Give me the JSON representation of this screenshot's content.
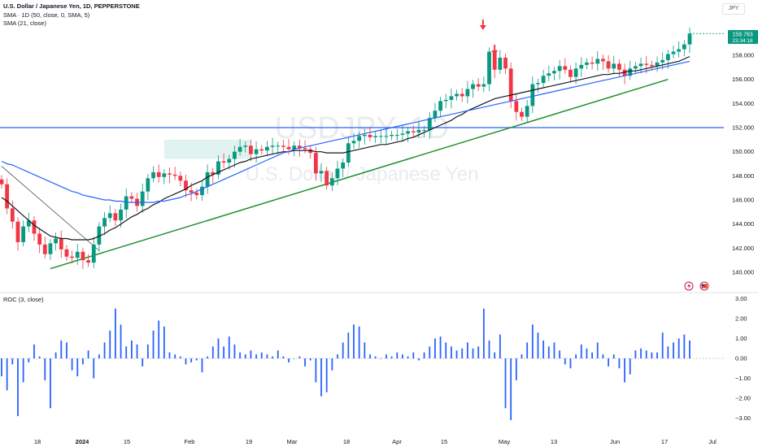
{
  "header": {
    "symbol_line": "U.S. Dollar / Japanese Yen, 1D, PEPPERSTONE",
    "sma50_line": "SMA · 1D (50, close, 0, SMA, 5)",
    "sma21_line": "SMA (21, close)",
    "currency": "JPY"
  },
  "watermark": {
    "ticker": "USDJPY, 1D",
    "name": "U.S. Dollar / Japanese Yen"
  },
  "price_badge": {
    "price": "159.763",
    "countdown": "23:34:18",
    "color": "#089981"
  },
  "colors": {
    "up": "#089981",
    "down": "#f23645",
    "sma21": "#131722",
    "sma50": "#2962ff",
    "support": "#1e8f2e",
    "resistance": "#2962ff",
    "roc": "#2962ff"
  },
  "chart_data": [
    {
      "type": "candlestick",
      "ylim": [
        139,
        160
      ],
      "yticks": [
        140,
        142,
        144,
        146,
        148,
        150,
        152,
        154,
        156,
        158
      ],
      "x_tick_labels": [
        "18",
        "2024",
        "15",
        "Feb",
        "19",
        "Mar",
        "18",
        "Apr",
        "15",
        "May",
        "13",
        "Jun",
        "17",
        "Jul"
      ],
      "closes": [
        147.3,
        145.3,
        144.2,
        142.5,
        143.8,
        144.3,
        143.2,
        142.3,
        141.5,
        142.4,
        142.8,
        141.9,
        141.3,
        141.2,
        141.7,
        141.0,
        140.8,
        142.3,
        143.8,
        144.5,
        144.9,
        144.3,
        145.2,
        146.3,
        146.1,
        145.5,
        146.7,
        147.8,
        148.3,
        147.9,
        148.2,
        148.1,
        148.0,
        147.6,
        146.8,
        146.6,
        146.4,
        147.1,
        148.3,
        148.1,
        149.2,
        149.1,
        149.4,
        150.0,
        150.4,
        150.5,
        149.8,
        150.2,
        150.1,
        150.4,
        150.5,
        150.5,
        150.4,
        150.2,
        150.5,
        150.3,
        150.2,
        149.9,
        148.2,
        148.4,
        147.2,
        147.8,
        148.6,
        149.1,
        150.7,
        150.9,
        151.3,
        151.4,
        151.2,
        151.3,
        151.3,
        151.3,
        151.4,
        151.4,
        151.5,
        151.7,
        151.6,
        151.8,
        151.8,
        152.8,
        153.4,
        154.2,
        154.3,
        154.6,
        154.8,
        154.6,
        155.2,
        155.6,
        155.4,
        155.6,
        158.3,
        156.8,
        157.8,
        156.9,
        154.2,
        153.3,
        152.9,
        153.8,
        155.6,
        155.7,
        156.3,
        156.5,
        156.7,
        157.1,
        156.8,
        156.2,
        156.9,
        157.2,
        157.4,
        157.3,
        157.7,
        157.5,
        156.9,
        157.3,
        156.8,
        156.3,
        156.9,
        157.1,
        157.3,
        157.2,
        157.1,
        157.4,
        157.6,
        158.1,
        158.3,
        158.5,
        158.9,
        159.8
      ],
      "highs_extra": 0.35,
      "series": [
        {
          "name": "SMA (21, close)",
          "values": [
            146.2,
            145.9,
            145.5,
            145.1,
            144.7,
            144.3,
            143.9,
            143.6,
            143.3,
            143.0,
            142.9,
            142.8,
            142.8,
            142.7,
            142.7,
            142.7,
            142.7,
            142.8,
            143.0,
            143.2,
            143.5,
            143.7,
            144.0,
            144.3,
            144.6,
            144.8,
            145.1,
            145.3,
            145.6,
            145.8,
            146.1,
            146.3,
            146.5,
            146.7,
            146.9,
            147.2,
            147.4,
            147.6,
            147.9,
            148.1,
            148.3,
            148.5,
            148.7,
            148.9,
            149.1,
            149.2,
            149.4,
            149.5,
            149.6,
            149.7,
            149.8,
            149.9,
            150.0,
            150.0,
            150.1,
            150.1,
            150.1,
            150.1,
            150.0,
            150.0,
            149.9,
            149.9,
            149.9,
            149.9,
            150.0,
            150.1,
            150.2,
            150.3,
            150.4,
            150.5,
            150.6,
            150.6,
            150.7,
            150.8,
            150.9,
            151.1,
            151.2,
            151.4,
            151.6,
            151.8,
            152.0,
            152.2,
            152.4,
            152.6,
            152.9,
            153.1,
            153.4,
            153.6,
            153.8,
            154.0,
            154.2,
            154.4,
            154.5,
            154.6,
            154.7,
            154.8,
            154.9,
            155.0,
            155.1,
            155.2,
            155.3,
            155.4,
            155.5,
            155.6,
            155.7,
            155.8,
            155.9,
            156.0,
            156.1,
            156.2,
            156.3,
            156.4,
            156.4,
            156.5,
            156.5,
            156.6,
            156.7,
            156.7,
            156.8,
            156.9,
            157.0,
            157.1,
            157.2,
            157.3,
            157.4,
            157.5,
            157.7,
            157.9
          ]
        },
        {
          "name": "SMA · 1D (50, close, 0, SMA, 5)",
          "values": [
            149.2,
            149.0,
            148.9,
            148.7,
            148.5,
            148.3,
            148.1,
            147.9,
            147.7,
            147.5,
            147.3,
            147.1,
            146.9,
            146.7,
            146.6,
            146.4,
            146.3,
            146.2,
            146.1,
            146.0,
            146.0,
            145.9,
            145.9,
            145.8,
            145.8,
            145.8,
            145.8,
            145.8,
            145.8,
            145.9,
            145.9,
            146.0,
            146.1,
            146.2,
            146.4,
            146.5,
            146.7,
            146.9,
            147.1,
            147.3,
            147.5,
            147.7,
            147.9,
            148.1,
            148.3,
            148.5,
            148.7,
            148.9,
            149.1,
            149.3,
            149.5,
            149.7,
            149.9,
            150.0,
            150.2,
            150.3,
            150.4,
            150.5,
            150.6,
            150.7,
            150.8,
            150.9,
            151.0,
            151.1,
            151.2,
            151.3,
            151.4,
            151.5,
            151.6,
            151.7,
            151.8,
            151.9,
            152.0,
            152.1,
            152.2,
            152.3,
            152.4,
            152.5,
            152.6,
            152.7,
            152.8,
            152.9,
            153.0,
            153.1,
            153.2,
            153.3,
            153.4,
            153.5,
            153.6,
            153.7,
            153.8,
            153.9,
            154.0,
            154.1,
            154.2,
            154.3,
            154.4,
            154.5,
            154.6,
            154.7,
            154.8,
            154.9,
            155.0,
            155.1,
            155.2,
            155.3,
            155.4,
            155.5,
            155.6,
            155.7,
            155.8,
            155.9,
            156.0,
            156.1,
            156.2,
            156.3,
            156.4,
            156.5,
            156.6,
            156.7,
            156.8,
            156.9,
            157.0,
            157.1,
            157.2,
            157.3,
            157.4,
            157.5
          ]
        }
      ],
      "support_line": {
        "from": [
          9,
          140.3
        ],
        "to": [
          123,
          156.0
        ]
      },
      "resistance_level": 152.0,
      "arrows_at": [
        89,
        91
      ]
    },
    {
      "type": "bar",
      "title": "ROC (3, close)",
      "ylim": [
        -3.3,
        3.3
      ],
      "yticks": [
        "3.00",
        "2.00",
        "1.00",
        "0.00",
        "−1.00",
        "−2.00",
        "−3.00"
      ],
      "ytick_values": [
        3,
        2,
        1,
        0,
        -1,
        -2,
        -3
      ],
      "values": [
        -0.9,
        -1.6,
        -0.3,
        -2.9,
        -1.2,
        -0.2,
        0.7,
        0.1,
        -1.1,
        -2.5,
        0.3,
        0.9,
        0.8,
        -0.6,
        -0.9,
        -0.3,
        0.4,
        -1.0,
        0.2,
        0.8,
        1.4,
        2.5,
        1.7,
        0.6,
        0.9,
        0.7,
        -0.4,
        0.7,
        1.4,
        1.9,
        1.6,
        0.3,
        0.2,
        0.1,
        -0.3,
        -0.2,
        -0.1,
        -0.7,
        0.1,
        0.6,
        1.0,
        0.6,
        1.1,
        0.7,
        0.3,
        0.2,
        0.4,
        0.2,
        0.3,
        0.2,
        0.1,
        0.4,
        0.1,
        -0.2,
        0.0,
        0.1,
        -0.4,
        -0.1,
        -1.2,
        -1.9,
        -1.7,
        -0.6,
        0.2,
        0.8,
        1.3,
        1.7,
        1.6,
        0.8,
        0.2,
        0.1,
        0.0,
        0.2,
        0.1,
        0.3,
        0.2,
        0.1,
        0.3,
        -0.1,
        0.3,
        0.6,
        1.0,
        1.1,
        0.8,
        0.6,
        0.4,
        0.5,
        0.8,
        0.5,
        0.6,
        2.5,
        0.9,
        0.3,
        1.2,
        -2.5,
        -3.1,
        -1.1,
        0.2,
        0.8,
        1.7,
        1.3,
        0.9,
        0.6,
        0.8,
        0.4,
        -0.3,
        -0.5,
        0.2,
        0.7,
        0.5,
        0.3,
        0.8,
        0.2,
        -0.4,
        0.2,
        -0.5,
        -1.2,
        -0.8,
        0.4,
        0.5,
        0.4,
        0.3,
        0.3,
        1.3,
        0.6,
        0.8,
        1.0,
        1.2,
        0.9
      ]
    }
  ]
}
